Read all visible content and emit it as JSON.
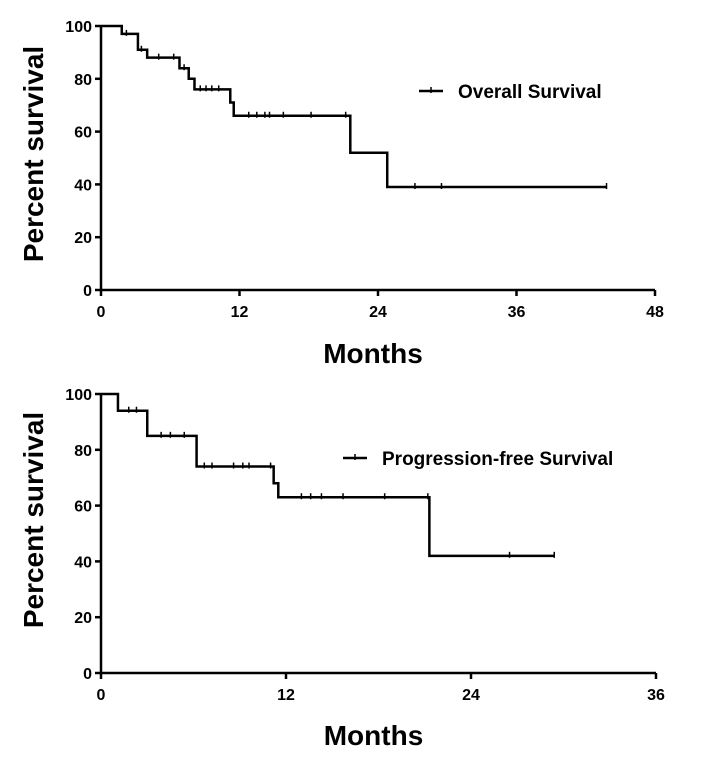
{
  "chart_data": [
    {
      "type": "line",
      "step": true,
      "xlabel": "Months",
      "ylabel": "Percent survival",
      "xlim": [
        0,
        48
      ],
      "ylim": [
        0,
        100
      ],
      "xticks": [
        0,
        12,
        24,
        36,
        48
      ],
      "yticks": [
        0,
        20,
        40,
        60,
        80,
        100
      ],
      "grid": false,
      "legend_position": "top-right",
      "series": [
        {
          "name": "Overall Survival",
          "steps": [
            [
              0,
              100
            ],
            [
              1.8,
              97
            ],
            [
              3.2,
              91
            ],
            [
              4,
              88
            ],
            [
              6.8,
              84
            ],
            [
              7.6,
              80
            ],
            [
              8.1,
              76
            ],
            [
              11.2,
              71
            ],
            [
              11.5,
              66
            ],
            [
              21.6,
              52
            ],
            [
              24.8,
              39
            ],
            [
              43.8,
              39
            ]
          ],
          "censored": [
            [
              2.2,
              97
            ],
            [
              3.5,
              91
            ],
            [
              5,
              88
            ],
            [
              6.3,
              88
            ],
            [
              7.2,
              84
            ],
            [
              8.6,
              76
            ],
            [
              9.1,
              76
            ],
            [
              9.6,
              76
            ],
            [
              10.2,
              76
            ],
            [
              12.8,
              66
            ],
            [
              13.5,
              66
            ],
            [
              14.2,
              66
            ],
            [
              14.6,
              66
            ],
            [
              15.8,
              66
            ],
            [
              18.2,
              66
            ],
            [
              21.2,
              66
            ],
            [
              27.2,
              39
            ],
            [
              29.5,
              39
            ],
            [
              43.8,
              39
            ]
          ]
        }
      ]
    },
    {
      "type": "line",
      "step": true,
      "xlabel": "Months",
      "ylabel": "Percent survival",
      "xlim": [
        0,
        36
      ],
      "ylim": [
        0,
        100
      ],
      "xticks": [
        0,
        12,
        24,
        36
      ],
      "yticks": [
        0,
        20,
        40,
        60,
        80,
        100
      ],
      "grid": false,
      "legend_position": "top-right",
      "series": [
        {
          "name": "Progression-free Survival",
          "steps": [
            [
              0,
              100
            ],
            [
              1.1,
              94
            ],
            [
              3,
              85
            ],
            [
              6.2,
              74
            ],
            [
              11.2,
              68
            ],
            [
              11.5,
              63
            ],
            [
              21.3,
              42
            ],
            [
              29.4,
              42
            ]
          ],
          "censored": [
            [
              1.8,
              94
            ],
            [
              2.3,
              94
            ],
            [
              3.9,
              85
            ],
            [
              4.5,
              85
            ],
            [
              5.4,
              85
            ],
            [
              6.7,
              74
            ],
            [
              7.2,
              74
            ],
            [
              8.6,
              74
            ],
            [
              9.2,
              74
            ],
            [
              9.6,
              74
            ],
            [
              11,
              74
            ],
            [
              13,
              63
            ],
            [
              13.6,
              63
            ],
            [
              14.3,
              63
            ],
            [
              15.7,
              63
            ],
            [
              18.4,
              63
            ],
            [
              21.2,
              63
            ],
            [
              26.5,
              42
            ],
            [
              29.4,
              42
            ]
          ]
        }
      ]
    }
  ]
}
